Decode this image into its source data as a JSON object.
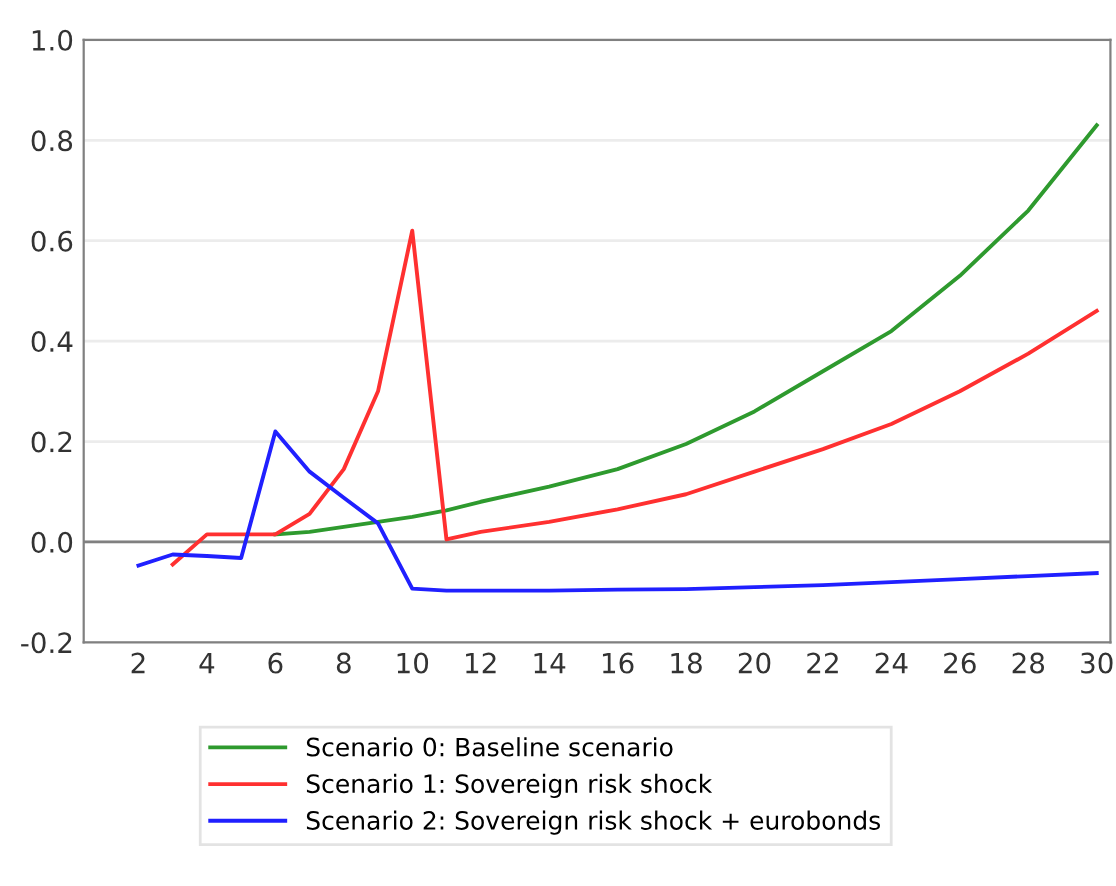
{
  "chart_data": {
    "type": "line",
    "xlim": [
      0.4,
      30.4
    ],
    "xticks": [
      2,
      4,
      6,
      8,
      10,
      12,
      14,
      16,
      18,
      20,
      22,
      24,
      26,
      28,
      30
    ],
    "ylim": [
      -0.2,
      1.0
    ],
    "yticks": [
      {
        "value": -0.2,
        "label": "-0.2"
      },
      {
        "value": 0.0,
        "label": "0.0"
      },
      {
        "value": 0.2,
        "label": "0.2"
      },
      {
        "value": 0.4,
        "label": "0.4"
      },
      {
        "value": 0.6,
        "label": "0.6"
      },
      {
        "value": 0.8,
        "label": "0.8"
      },
      {
        "value": 1.0,
        "label": "1.0"
      }
    ],
    "grid": "y",
    "legend": "bottom",
    "marker": "none",
    "line_style": "solid",
    "ref_lines": [
      {
        "axis": "y",
        "value": 0,
        "color": "#808080"
      }
    ],
    "series": [
      {
        "name": "Scenario 0: Baseline scenario",
        "color": "#2e9a2e",
        "x": [
          6,
          7,
          8,
          9,
          10,
          11,
          12,
          14,
          16,
          18,
          20,
          22,
          24,
          26,
          28,
          30
        ],
        "values": [
          0.015,
          0.02,
          0.03,
          0.04,
          0.05,
          0.063,
          0.08,
          0.11,
          0.145,
          0.195,
          0.26,
          0.34,
          0.42,
          0.53,
          0.66,
          0.83
        ]
      },
      {
        "name": "Scenario 1: Sovereign risk shock",
        "color": "#ff3030",
        "x": [
          3,
          4,
          5,
          6,
          7,
          8,
          9,
          10,
          11,
          12,
          14,
          16,
          18,
          20,
          22,
          24,
          26,
          28,
          30
        ],
        "values": [
          -0.045,
          0.015,
          0.015,
          0.015,
          0.056,
          0.145,
          0.3,
          0.62,
          0.005,
          0.02,
          0.04,
          0.065,
          0.095,
          0.14,
          0.185,
          0.235,
          0.3,
          0.375,
          0.46
        ]
      },
      {
        "name": "Scenario 2: Sovereign risk shock + eurobonds",
        "color": "#2020ff",
        "x": [
          2,
          3,
          4,
          5,
          6,
          7,
          8,
          9,
          10,
          11,
          12,
          14,
          16,
          18,
          20,
          22,
          24,
          26,
          28,
          30
        ],
        "values": [
          -0.047,
          -0.025,
          -0.028,
          -0.032,
          0.22,
          0.14,
          0.088,
          0.037,
          -0.093,
          -0.097,
          -0.097,
          -0.097,
          -0.095,
          -0.094,
          -0.09,
          -0.086,
          -0.08,
          -0.074,
          -0.068,
          -0.062
        ]
      }
    ]
  }
}
